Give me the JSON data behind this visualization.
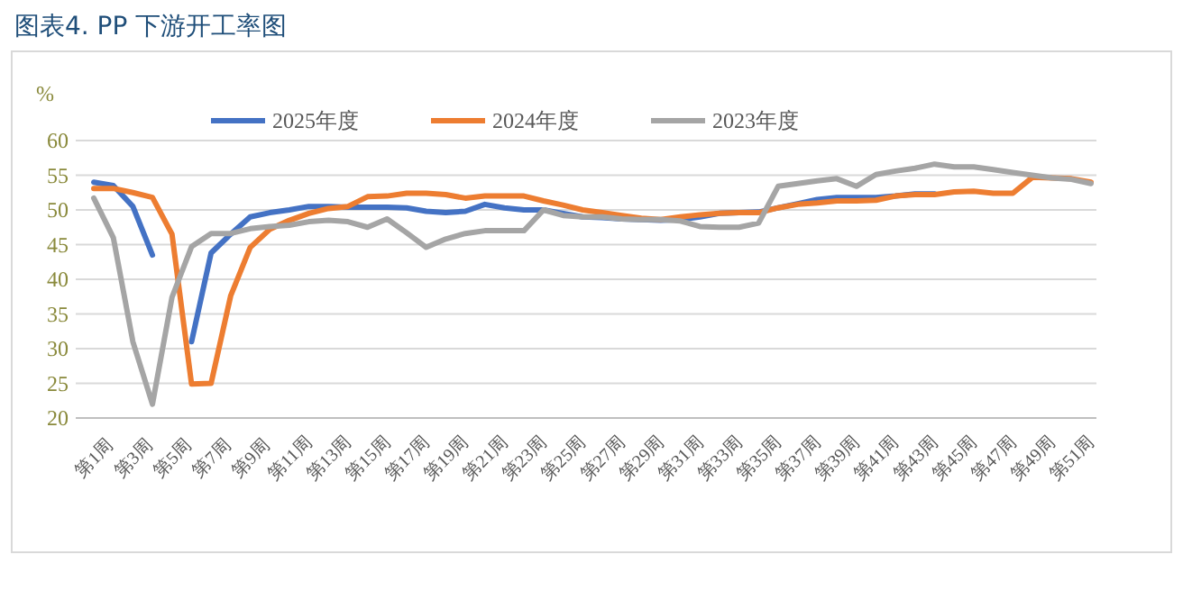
{
  "chart_data": {
    "type": "line",
    "title": "图表4. PP 下游开工率图",
    "ylabel": "%",
    "categories": [
      "第1周",
      null,
      "第3周",
      null,
      "第5周",
      null,
      "第7周",
      null,
      "第9周",
      null,
      "第11周",
      null,
      "第13周",
      null,
      "第15周",
      null,
      "第17周",
      null,
      "第19周",
      null,
      "第21周",
      null,
      "第23周",
      null,
      "第25周",
      null,
      "第27周",
      null,
      "第29周",
      null,
      "第31周",
      null,
      "第33周",
      null,
      "第35周",
      null,
      "第37周",
      null,
      "第39周",
      null,
      "第41周",
      null,
      "第43周",
      null,
      "第45周",
      null,
      "第47周",
      null,
      "第49周",
      null,
      "第51周",
      null
    ],
    "series": [
      {
        "name": "2025年度",
        "color": "#4472c4",
        "values": [
          54,
          53.5,
          50.5,
          43.5,
          null,
          31,
          43.8,
          46.5,
          49,
          49.6,
          50,
          50.5,
          50.5,
          50.4,
          50.4,
          50.4,
          50.3,
          49.8,
          49.6,
          49.8,
          50.8,
          50.3,
          50,
          50,
          49.5,
          49,
          48.9,
          48.7,
          48.6,
          48.5,
          48.6,
          49,
          49.5,
          49.6,
          49.7,
          50.3,
          50.9,
          51.5,
          51.8,
          51.8,
          51.8,
          52,
          52.3,
          52.3,
          null,
          null,
          null,
          null,
          null,
          null,
          null,
          null
        ]
      },
      {
        "name": "2024年度",
        "color": "#ed7d31",
        "values": [
          53.1,
          53.1,
          52.5,
          51.8,
          46.5,
          24.9,
          25,
          37.6,
          44.6,
          47.2,
          48.5,
          49.5,
          50.2,
          50.5,
          51.9,
          52,
          52.4,
          52.4,
          52.2,
          51.7,
          52,
          52,
          52,
          51.3,
          50.7,
          50,
          49.6,
          49.2,
          48.8,
          48.6,
          49,
          49.3,
          49.5,
          49.6,
          49.6,
          50.3,
          50.8,
          51,
          51.3,
          51.3,
          51.4,
          52,
          52.2,
          52.2,
          52.6,
          52.7,
          52.4,
          52.4,
          54.7,
          54.6,
          54.5,
          54
        ]
      },
      {
        "name": "2023年度",
        "color": "#a5a5a5",
        "values": [
          51.7,
          46,
          31,
          22,
          37.4,
          44.7,
          46.6,
          46.6,
          47.3,
          47.6,
          47.8,
          48.3,
          48.5,
          48.3,
          47.5,
          48.7,
          46.7,
          44.6,
          45.8,
          46.6,
          47,
          47,
          47,
          50,
          49.2,
          49,
          49,
          48.7,
          48.6,
          48.6,
          48.4,
          47.6,
          47.5,
          47.5,
          48.1,
          53.4,
          53.8,
          54.2,
          54.5,
          53.4,
          55.1,
          55.6,
          56,
          56.6,
          56.2,
          56.2,
          55.8,
          55.4,
          55,
          54.6,
          54.4,
          53.8
        ]
      }
    ],
    "ylim": [
      20,
      60
    ],
    "yticks": [
      20,
      25,
      30,
      35,
      40,
      45,
      50,
      55,
      60
    ],
    "grid": "y",
    "legend": "top",
    "marker": "none",
    "line_style": "solid"
  }
}
